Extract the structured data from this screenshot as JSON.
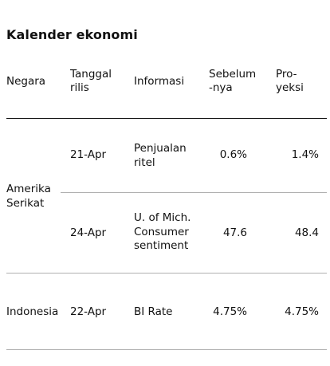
{
  "title": "Kalender ekonomi",
  "headers": {
    "country": "Negara",
    "release_date": "Tanggal\nrilis",
    "info": "Informasi",
    "previous": "Sebelum\n-nya",
    "forecast": "Pro-\nyeksi"
  },
  "groups": [
    {
      "country": "Amerika\nSerikat",
      "rows": [
        {
          "date": "21-Apr",
          "info": "Penjualan\nritel",
          "previous": "0.6%",
          "forecast": "1.4%"
        },
        {
          "date": "24-Apr",
          "info": "U. of Mich.\nConsumer\nsentiment",
          "previous": "47.6",
          "forecast": "48.4"
        }
      ]
    },
    {
      "country": "Indonesia",
      "rows": [
        {
          "date": "22-Apr",
          "info": "BI Rate",
          "previous": "4.75%",
          "forecast": "4.75%"
        }
      ]
    }
  ]
}
